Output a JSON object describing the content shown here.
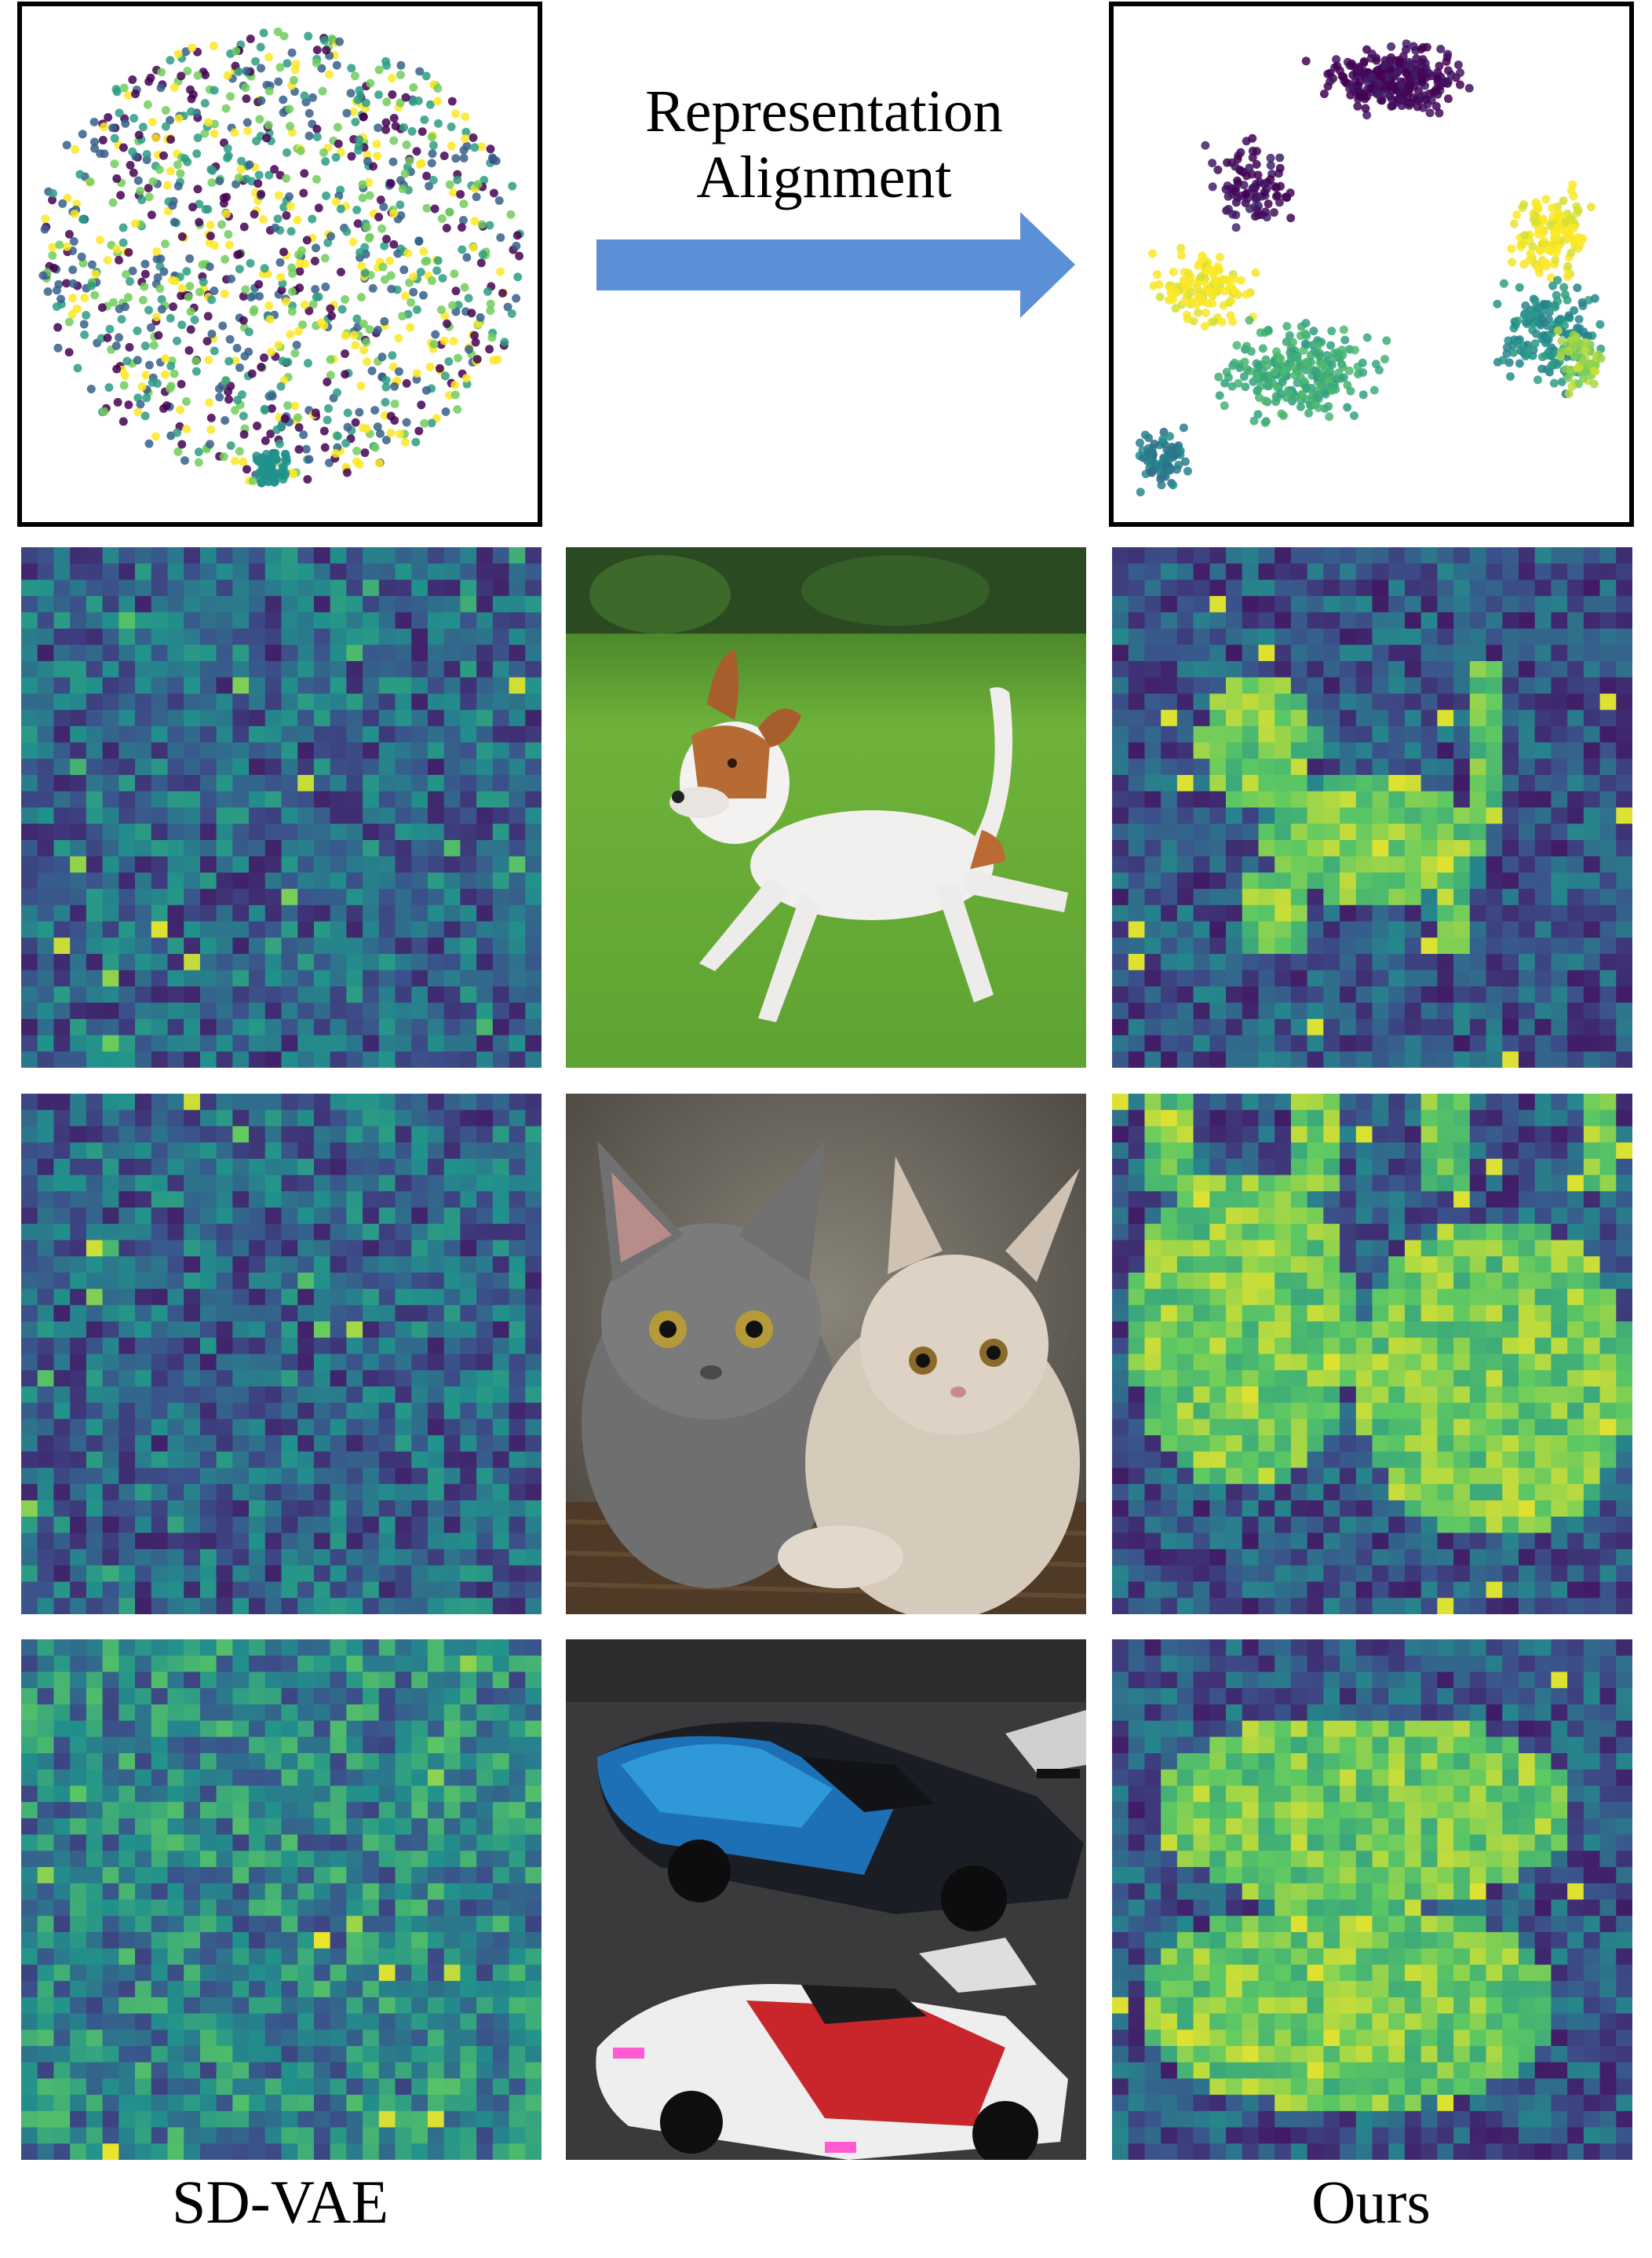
{
  "figure": {
    "arrow_title_line1": "Representation",
    "arrow_title_line2": "Alignment",
    "caption_left": "SD-VAE",
    "caption_right": "Ours",
    "arrow_color": "#5b8fd6",
    "palette": [
      "#440154",
      "#3b528b",
      "#21918c",
      "#5ec962",
      "#fde725"
    ]
  },
  "rows": [
    {
      "image": "running-dog-photo"
    },
    {
      "image": "two-kittens-photo"
    },
    {
      "image": "race-cars-photo"
    }
  ]
}
